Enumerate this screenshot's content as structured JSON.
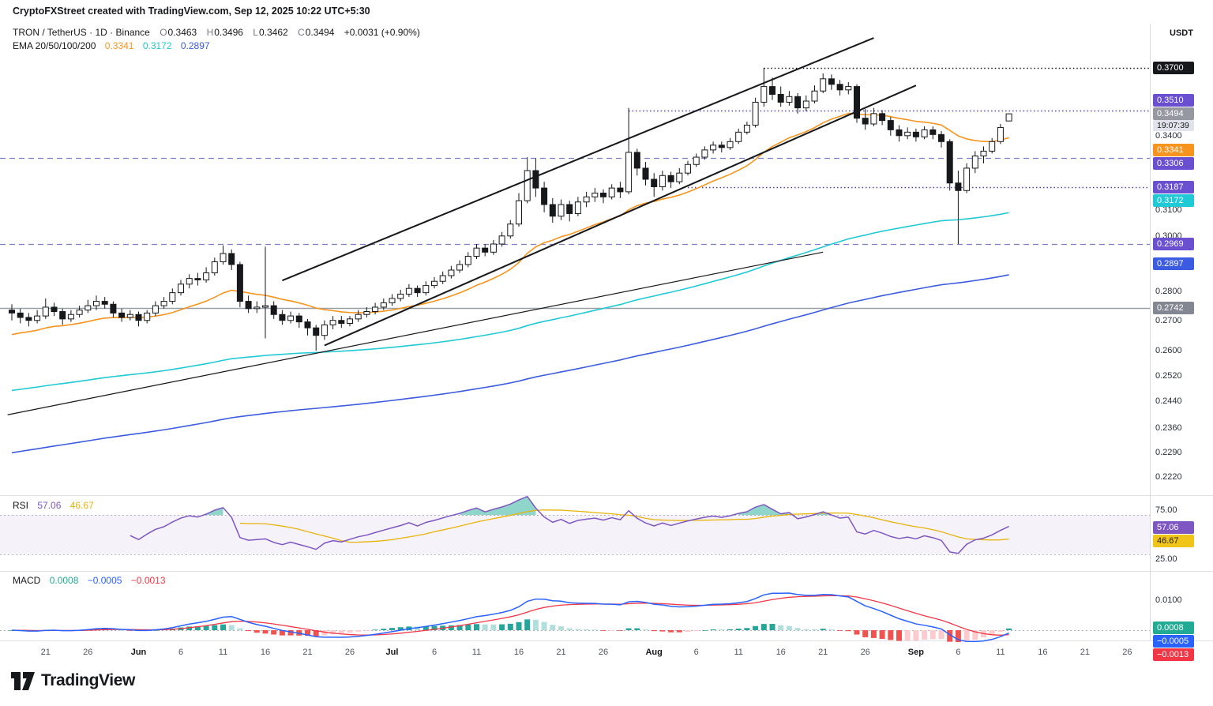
{
  "header": {
    "attribution": "CryptoFXStreet created with TradingView.com, Sep 12, 2025 10:22 UTC+5:30"
  },
  "symbol_line": {
    "title": "TRON / TetherUS · 1D · Binance",
    "o_label": "O",
    "o": "0.3463",
    "h_label": "H",
    "h": "0.3496",
    "l_label": "L",
    "l": "0.3462",
    "c_label": "C",
    "c": "0.3494",
    "change": "+0.0031 (+0.90%)"
  },
  "ema_legend": {
    "label": "EMA 20/50/100/200",
    "values": [
      "0.3341",
      "0.3172",
      "0.2897"
    ]
  },
  "rsi_legend": {
    "label": "RSI",
    "values": [
      "57.06",
      "46.67"
    ]
  },
  "macd_legend": {
    "label": "MACD",
    "values": [
      "0.0008",
      "−0.0005",
      "−0.0013"
    ]
  },
  "price_axis": {
    "currency": "USDT",
    "ticks": [
      {
        "label": "0.3400",
        "price": 0.34
      },
      {
        "label": "0.3100",
        "price": 0.31
      },
      {
        "label": "0.3000",
        "price": 0.3
      },
      {
        "label": "0.2800",
        "price": 0.28
      },
      {
        "label": "0.2700",
        "price": 0.27
      },
      {
        "label": "0.2600",
        "price": 0.26
      },
      {
        "label": "0.2520",
        "price": 0.252
      },
      {
        "label": "0.2440",
        "price": 0.244
      },
      {
        "label": "0.2360",
        "price": 0.236
      },
      {
        "label": "0.2290",
        "price": 0.229
      },
      {
        "label": "0.2220",
        "price": 0.222
      }
    ],
    "badges": [
      {
        "label": "0.3700",
        "price": 0.37,
        "bg": "#17181b",
        "fg": "#ffffff"
      },
      {
        "label": "0.3510",
        "price": 0.351,
        "bg": "#6a4fd0",
        "fg": "#ffffff"
      },
      {
        "label": "0.3494",
        "price": 0.3494,
        "bg": "#9598a1",
        "fg": "#ffffff",
        "countdown": "19:07:39",
        "is_last_price": true
      },
      {
        "label": "0.3341",
        "price": 0.3341,
        "bg": "#f7941e",
        "fg": "#ffffff"
      },
      {
        "label": "0.3306",
        "price": 0.3306,
        "bg": "#6a4fd0",
        "fg": "#ffffff"
      },
      {
        "label": "0.3187",
        "price": 0.3187,
        "bg": "#6a4fd0",
        "fg": "#ffffff"
      },
      {
        "label": "0.3172",
        "price": 0.3172,
        "bg": "#1fc9d6",
        "fg": "#ffffff"
      },
      {
        "label": "0.2969",
        "price": 0.2969,
        "bg": "#6a4fd0",
        "fg": "#ffffff"
      },
      {
        "label": "0.2897",
        "price": 0.2897,
        "bg": "#3b5be0",
        "fg": "#ffffff"
      },
      {
        "label": "0.2742",
        "price": 0.2742,
        "bg": "#838792",
        "fg": "#ffffff"
      }
    ]
  },
  "rsi_axis": {
    "ticks": [
      {
        "label": "75.00",
        "value": 75
      },
      {
        "label": "25.00",
        "value": 25
      }
    ],
    "badges": [
      {
        "label": "57.06",
        "value": 57.06,
        "bg": "#7e57c2",
        "fg": "#ffffff"
      },
      {
        "label": "46.67",
        "value": 46.67,
        "bg": "#f0c419",
        "fg": "#1c1e24"
      }
    ]
  },
  "macd_axis": {
    "ticks": [
      {
        "label": "0.0100",
        "value": 0.01
      }
    ],
    "badges": [
      {
        "label": "0.0008",
        "value": 0.0008,
        "bg": "#22ab94",
        "fg": "#ffffff"
      },
      {
        "label": "−0.0005",
        "value": -0.0005,
        "bg": "#2962ff",
        "fg": "#ffffff"
      },
      {
        "label": "−0.0013",
        "value": -0.0013,
        "bg": "#f23645",
        "fg": "#ffffff"
      }
    ]
  },
  "time_axis": {
    "labels": [
      {
        "text": "21",
        "day": 4
      },
      {
        "text": "26",
        "day": 9
      },
      {
        "text": "Jun",
        "day": 15,
        "month": true
      },
      {
        "text": "6",
        "day": 20
      },
      {
        "text": "11",
        "day": 25
      },
      {
        "text": "16",
        "day": 30
      },
      {
        "text": "21",
        "day": 35
      },
      {
        "text": "26",
        "day": 40
      },
      {
        "text": "Jul",
        "day": 45,
        "month": true
      },
      {
        "text": "6",
        "day": 50
      },
      {
        "text": "11",
        "day": 55
      },
      {
        "text": "16",
        "day": 60
      },
      {
        "text": "21",
        "day": 65
      },
      {
        "text": "26",
        "day": 70
      },
      {
        "text": "Aug",
        "day": 76,
        "month": true
      },
      {
        "text": "6",
        "day": 81
      },
      {
        "text": "11",
        "day": 86
      },
      {
        "text": "16",
        "day": 91
      },
      {
        "text": "21",
        "day": 96
      },
      {
        "text": "26",
        "day": 101
      },
      {
        "text": "Sep",
        "day": 107,
        "month": true
      },
      {
        "text": "6",
        "day": 112
      },
      {
        "text": "11",
        "day": 117
      },
      {
        "text": "16",
        "day": 122
      },
      {
        "text": "21",
        "day": 127
      },
      {
        "text": "26",
        "day": 132
      }
    ]
  },
  "footer": {
    "brand": "TradingView"
  },
  "chart_data": {
    "type": "candlestick",
    "symbol": "TRON / TetherUS",
    "exchange": "Binance",
    "interval": "1D",
    "start_date": "2025-05-17",
    "end_date": "2025-09-12",
    "ohlc_last": {
      "open": 0.3463,
      "high": 0.3496,
      "low": 0.3462,
      "close": 0.3494,
      "change_abs": 0.0031,
      "change_pct": 0.9
    },
    "up_color": "#ffffff",
    "down_color": "#17181b",
    "outline_color": "#17181b",
    "candles": [
      [
        0.2735,
        0.2755,
        0.27,
        0.2725
      ],
      [
        0.2725,
        0.274,
        0.269,
        0.271
      ],
      [
        0.271,
        0.2725,
        0.268,
        0.27
      ],
      [
        0.27,
        0.2735,
        0.269,
        0.2715
      ],
      [
        0.2715,
        0.2775,
        0.2705,
        0.2745
      ],
      [
        0.2745,
        0.276,
        0.2715,
        0.273
      ],
      [
        0.273,
        0.274,
        0.2685,
        0.2705
      ],
      [
        0.2705,
        0.2735,
        0.2695,
        0.272
      ],
      [
        0.272,
        0.275,
        0.271,
        0.2735
      ],
      [
        0.2735,
        0.277,
        0.2725,
        0.275
      ],
      [
        0.275,
        0.2785,
        0.2735,
        0.2765
      ],
      [
        0.2765,
        0.278,
        0.274,
        0.2755
      ],
      [
        0.2755,
        0.2765,
        0.271,
        0.2725
      ],
      [
        0.2725,
        0.274,
        0.2695,
        0.271
      ],
      [
        0.271,
        0.2735,
        0.27,
        0.272
      ],
      [
        0.272,
        0.273,
        0.268,
        0.27
      ],
      [
        0.27,
        0.2735,
        0.269,
        0.2725
      ],
      [
        0.2725,
        0.2765,
        0.2715,
        0.275
      ],
      [
        0.275,
        0.278,
        0.274,
        0.2765
      ],
      [
        0.2765,
        0.281,
        0.2755,
        0.2795
      ],
      [
        0.2795,
        0.284,
        0.2785,
        0.2825
      ],
      [
        0.2825,
        0.286,
        0.281,
        0.2845
      ],
      [
        0.2845,
        0.2865,
        0.282,
        0.284
      ],
      [
        0.284,
        0.2885,
        0.283,
        0.2865
      ],
      [
        0.2865,
        0.292,
        0.2855,
        0.2905
      ],
      [
        0.2905,
        0.2965,
        0.2895,
        0.2935
      ],
      [
        0.2935,
        0.295,
        0.2875,
        0.2895
      ],
      [
        0.2895,
        0.2905,
        0.2745,
        0.2765
      ],
      [
        0.2765,
        0.2785,
        0.2725,
        0.274
      ],
      [
        0.274,
        0.2765,
        0.2725,
        0.2745
      ],
      [
        0.2745,
        0.296,
        0.264,
        0.275
      ],
      [
        0.275,
        0.2765,
        0.2705,
        0.272
      ],
      [
        0.272,
        0.2735,
        0.2685,
        0.27
      ],
      [
        0.27,
        0.273,
        0.269,
        0.2715
      ],
      [
        0.2715,
        0.2725,
        0.2675,
        0.2695
      ],
      [
        0.2695,
        0.2705,
        0.265,
        0.2675
      ],
      [
        0.2675,
        0.2685,
        0.26,
        0.265
      ],
      [
        0.265,
        0.27,
        0.2635,
        0.2685
      ],
      [
        0.2685,
        0.2715,
        0.267,
        0.27
      ],
      [
        0.27,
        0.2715,
        0.2675,
        0.269
      ],
      [
        0.269,
        0.2715,
        0.268,
        0.2705
      ],
      [
        0.2705,
        0.2735,
        0.2695,
        0.272
      ],
      [
        0.272,
        0.2745,
        0.271,
        0.273
      ],
      [
        0.273,
        0.276,
        0.272,
        0.2745
      ],
      [
        0.2745,
        0.2775,
        0.2735,
        0.276
      ],
      [
        0.276,
        0.279,
        0.275,
        0.2775
      ],
      [
        0.2775,
        0.2805,
        0.2765,
        0.279
      ],
      [
        0.279,
        0.2825,
        0.278,
        0.281
      ],
      [
        0.281,
        0.282,
        0.278,
        0.2795
      ],
      [
        0.2795,
        0.2835,
        0.2785,
        0.282
      ],
      [
        0.282,
        0.285,
        0.281,
        0.2835
      ],
      [
        0.2835,
        0.287,
        0.2825,
        0.2855
      ],
      [
        0.2855,
        0.289,
        0.2845,
        0.2875
      ],
      [
        0.2875,
        0.291,
        0.2865,
        0.2895
      ],
      [
        0.2895,
        0.294,
        0.2885,
        0.2925
      ],
      [
        0.2925,
        0.297,
        0.2915,
        0.2955
      ],
      [
        0.2955,
        0.297,
        0.2925,
        0.294
      ],
      [
        0.294,
        0.2985,
        0.293,
        0.297
      ],
      [
        0.297,
        0.3015,
        0.296,
        0.3
      ],
      [
        0.3,
        0.306,
        0.299,
        0.3045
      ],
      [
        0.3045,
        0.3165,
        0.3035,
        0.3135
      ],
      [
        0.3135,
        0.331,
        0.3125,
        0.3255
      ],
      [
        0.3255,
        0.3305,
        0.315,
        0.3185
      ],
      [
        0.3185,
        0.321,
        0.309,
        0.312
      ],
      [
        0.312,
        0.3145,
        0.305,
        0.3075
      ],
      [
        0.3075,
        0.314,
        0.306,
        0.312
      ],
      [
        0.312,
        0.3135,
        0.3055,
        0.3085
      ],
      [
        0.3085,
        0.315,
        0.3075,
        0.313
      ],
      [
        0.313,
        0.317,
        0.311,
        0.315
      ],
      [
        0.315,
        0.3185,
        0.313,
        0.3165
      ],
      [
        0.3165,
        0.318,
        0.3125,
        0.315
      ],
      [
        0.315,
        0.32,
        0.314,
        0.3185
      ],
      [
        0.3185,
        0.321,
        0.3145,
        0.317
      ],
      [
        0.317,
        0.352,
        0.316,
        0.333
      ],
      [
        0.333,
        0.3345,
        0.3235,
        0.3265
      ],
      [
        0.3265,
        0.329,
        0.3195,
        0.322
      ],
      [
        0.322,
        0.3245,
        0.315,
        0.319
      ],
      [
        0.319,
        0.3255,
        0.3175,
        0.3235
      ],
      [
        0.3235,
        0.325,
        0.3185,
        0.321
      ],
      [
        0.321,
        0.3265,
        0.32,
        0.3245
      ],
      [
        0.3245,
        0.3295,
        0.3235,
        0.328
      ],
      [
        0.328,
        0.3325,
        0.327,
        0.331
      ],
      [
        0.331,
        0.3355,
        0.33,
        0.334
      ],
      [
        0.334,
        0.3375,
        0.3325,
        0.336
      ],
      [
        0.336,
        0.3375,
        0.333,
        0.335
      ],
      [
        0.335,
        0.339,
        0.334,
        0.3375
      ],
      [
        0.3375,
        0.343,
        0.3365,
        0.3415
      ],
      [
        0.3415,
        0.346,
        0.3405,
        0.3445
      ],
      [
        0.3445,
        0.3565,
        0.3435,
        0.3545
      ],
      [
        0.3545,
        0.37,
        0.3525,
        0.3615
      ],
      [
        0.3615,
        0.3655,
        0.3555,
        0.358
      ],
      [
        0.358,
        0.3615,
        0.3525,
        0.3545
      ],
      [
        0.3545,
        0.3595,
        0.353,
        0.357
      ],
      [
        0.357,
        0.3585,
        0.3495,
        0.352
      ],
      [
        0.352,
        0.3575,
        0.3505,
        0.355
      ],
      [
        0.355,
        0.362,
        0.354,
        0.3595
      ],
      [
        0.3595,
        0.3675,
        0.3585,
        0.365
      ],
      [
        0.365,
        0.367,
        0.36,
        0.3625
      ],
      [
        0.3625,
        0.3645,
        0.3575,
        0.36
      ],
      [
        0.36,
        0.3635,
        0.358,
        0.3615
      ],
      [
        0.3615,
        0.3625,
        0.3455,
        0.3475
      ],
      [
        0.3475,
        0.3515,
        0.3425,
        0.345
      ],
      [
        0.345,
        0.352,
        0.344,
        0.3495
      ],
      [
        0.3495,
        0.351,
        0.3445,
        0.3465
      ],
      [
        0.3465,
        0.348,
        0.34,
        0.3425
      ],
      [
        0.3425,
        0.3445,
        0.3375,
        0.34
      ],
      [
        0.34,
        0.3435,
        0.3385,
        0.3415
      ],
      [
        0.3415,
        0.343,
        0.3375,
        0.3395
      ],
      [
        0.3395,
        0.344,
        0.3385,
        0.3425
      ],
      [
        0.3425,
        0.344,
        0.3385,
        0.3405
      ],
      [
        0.3405,
        0.342,
        0.335,
        0.3375
      ],
      [
        0.3375,
        0.3385,
        0.3175,
        0.3205
      ],
      [
        0.3205,
        0.3255,
        0.297,
        0.3175
      ],
      [
        0.3175,
        0.3285,
        0.3165,
        0.3265
      ],
      [
        0.3265,
        0.3335,
        0.3245,
        0.3315
      ],
      [
        0.3315,
        0.3355,
        0.3285,
        0.3335
      ],
      [
        0.3335,
        0.339,
        0.3325,
        0.3375
      ],
      [
        0.3375,
        0.345,
        0.3365,
        0.3435
      ],
      [
        0.3463,
        0.3496,
        0.3462,
        0.3494
      ]
    ],
    "emas": {
      "periods": [
        20,
        50,
        100,
        200
      ],
      "shown_values": [
        0.3341,
        0.3172,
        0.2897
      ],
      "colors": [
        "#f7941e",
        "#1fc9d6",
        "#3b5be0"
      ],
      "seeds": [
        0.2645,
        0.247,
        0.2285
      ]
    },
    "levels": [
      {
        "price": 0.37,
        "style": "dotted",
        "color": "#17181b",
        "from_day": 89,
        "width": 1.5
      },
      {
        "price": 0.351,
        "style": "dotted",
        "color": "#5240ad",
        "from_day": 73,
        "width": 1.5
      },
      {
        "price": 0.3187,
        "style": "dotted",
        "color": "#5240ad",
        "from_day": 80,
        "width": 1.5
      },
      {
        "price": 0.3306,
        "style": "dashed",
        "color": "#7a81c9",
        "from_day": -1.5,
        "width": 1.2
      },
      {
        "price": 0.2969,
        "style": "dashed",
        "color": "#7a81c9",
        "from_day": -1.5,
        "width": 1.2
      },
      {
        "price": 0.2742,
        "style": "solid",
        "color": "#9aa0a8",
        "from_day": -1.5,
        "width": 1.5
      }
    ],
    "trendlines": [
      {
        "d1": 32,
        "p1": 0.2838,
        "d2": 102,
        "p2": 0.3841,
        "width": 2,
        "color": "#17181b"
      },
      {
        "d1": 37,
        "p1": 0.2617,
        "d2": 107,
        "p2": 0.362,
        "width": 2,
        "color": "#17181b"
      },
      {
        "d1": -0.5,
        "p1": 0.24,
        "d2": 96,
        "p2": 0.294,
        "width": 1.2,
        "color": "#17181b"
      }
    ],
    "rsi": {
      "period": 14,
      "ma_period": 14,
      "line_color": "#7e57c2",
      "ma_color": "#e8b30b",
      "band": [
        70,
        30
      ],
      "band_fill": "rgba(126,87,194,0.08)",
      "overbought_fill": "rgba(34,171,148,0.5)",
      "last": 57.06,
      "ma_last": 46.67
    },
    "macd": {
      "fast": 12,
      "slow": 26,
      "signal_period": 9,
      "macd_color": "#2962ff",
      "signal_color": "#f23645",
      "hist_colors": [
        "#26a69a",
        "#b2dfdb",
        "#ef5350",
        "#fccbcd"
      ],
      "legend_colors": [
        "#22ab94",
        "#2962ff",
        "#f23645"
      ],
      "last_hist": 0.0008,
      "last_macd": -0.0005,
      "last_signal": -0.0013
    }
  }
}
